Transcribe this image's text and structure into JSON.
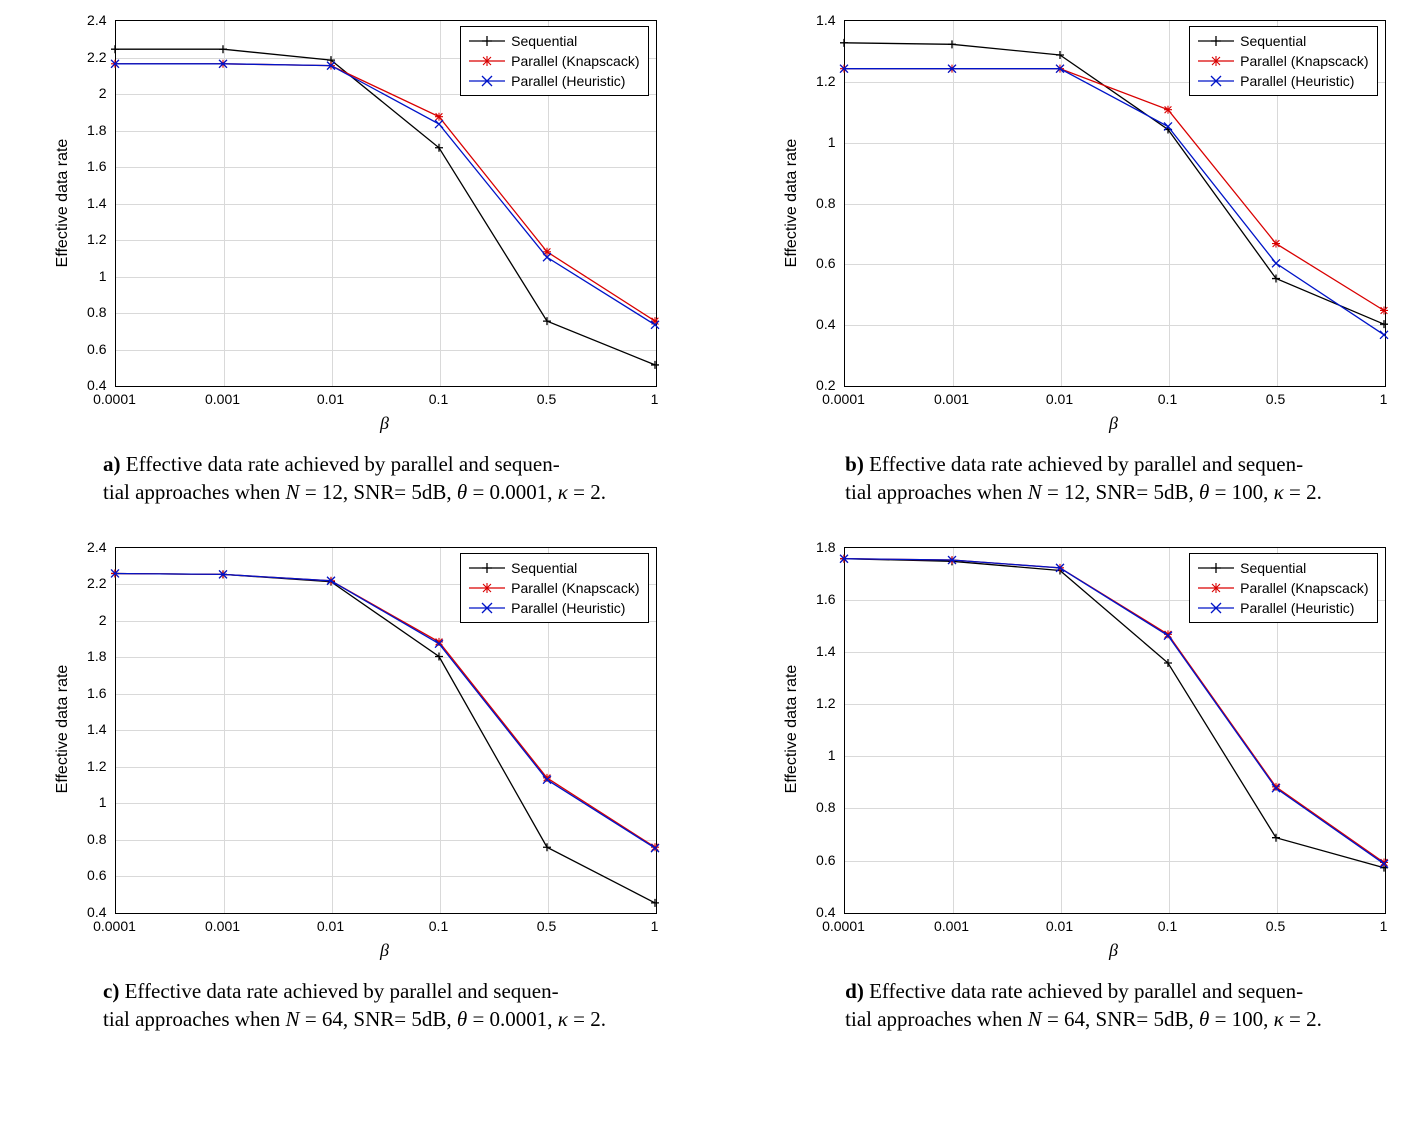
{
  "colors": {
    "sequential": "#000000",
    "knapsack": "#d90000",
    "heuristic": "#0014c8",
    "grid": "#d9d9d9",
    "background": "#ffffff",
    "axis": "#000000"
  },
  "series_meta": {
    "sequential": {
      "label": "Sequential",
      "marker": "plus",
      "color_key": "sequential"
    },
    "knapsack": {
      "label": "Parallel (Knapscack)",
      "marker": "star",
      "color_key": "knapsack"
    },
    "heuristic": {
      "label": "Parallel (Heuristic)",
      "marker": "x",
      "color_key": "heuristic"
    }
  },
  "x_categories": [
    "0.0001",
    "0.001",
    "0.01",
    "0.1",
    "0.5",
    "1"
  ],
  "xlabel": "β",
  "ylabel": "Effective data rate",
  "legend_order": [
    "sequential",
    "knapsack",
    "heuristic"
  ],
  "line_width": 1.3,
  "marker_size": 8,
  "font_tick": 14,
  "font_label": 16,
  "panels": {
    "a": {
      "ylim": [
        0.4,
        2.4
      ],
      "ytick_step": 0.2,
      "series": {
        "sequential": [
          2.24,
          2.24,
          2.18,
          1.7,
          0.75,
          0.51
        ],
        "knapsack": [
          2.16,
          2.16,
          2.15,
          1.87,
          1.13,
          0.75
        ],
        "heuristic": [
          2.16,
          2.16,
          2.15,
          1.83,
          1.1,
          0.73
        ]
      },
      "caption_bold": "a)",
      "caption_html": "Effective data rate achieved by parallel and sequen-<br>tial approaches when <i>N</i> = 12, SNR= 5dB, <i>θ</i> = 0.0001, <i>κ</i> = 2."
    },
    "b": {
      "ylim": [
        0.2,
        1.4
      ],
      "ytick_step": 0.2,
      "series": {
        "sequential": [
          1.325,
          1.32,
          1.285,
          1.04,
          0.55,
          0.4
        ],
        "knapsack": [
          1.24,
          1.24,
          1.24,
          1.105,
          0.665,
          0.445
        ],
        "heuristic": [
          1.24,
          1.24,
          1.24,
          1.05,
          0.6,
          0.365
        ]
      },
      "caption_bold": "b)",
      "caption_html": "Effective data rate achieved by parallel and sequen-<br>tial approaches when <i>N</i> = 12, SNR= 5dB, <i>θ</i> = 100, <i>κ</i> = 2."
    },
    "c": {
      "ylim": [
        0.4,
        2.4
      ],
      "ytick_step": 0.2,
      "series": {
        "sequential": [
          2.255,
          2.25,
          2.21,
          1.8,
          0.755,
          0.45
        ],
        "knapsack": [
          2.255,
          2.25,
          2.215,
          1.88,
          1.135,
          0.755
        ],
        "heuristic": [
          2.255,
          2.25,
          2.215,
          1.87,
          1.125,
          0.75
        ]
      },
      "caption_bold": "c)",
      "caption_html": "Effective data rate achieved by parallel and sequen-<br>tial approaches when <i>N</i> = 64, SNR= 5dB, <i>θ</i> = 0.0001, <i>κ</i> = 2."
    },
    "d": {
      "ylim": [
        0.4,
        1.8
      ],
      "ytick_step": 0.2,
      "series": {
        "sequential": [
          1.755,
          1.745,
          1.71,
          1.355,
          0.685,
          0.57
        ],
        "knapsack": [
          1.755,
          1.75,
          1.72,
          1.465,
          0.88,
          0.59
        ],
        "heuristic": [
          1.755,
          1.75,
          1.72,
          1.46,
          0.875,
          0.585
        ]
      },
      "caption_bold": "d)",
      "caption_html": "Effective data rate achieved by parallel and sequen-<br>tial approaches when <i>N</i> = 64, SNR= 5dB, <i>θ</i> = 100, <i>κ</i> = 2."
    }
  }
}
